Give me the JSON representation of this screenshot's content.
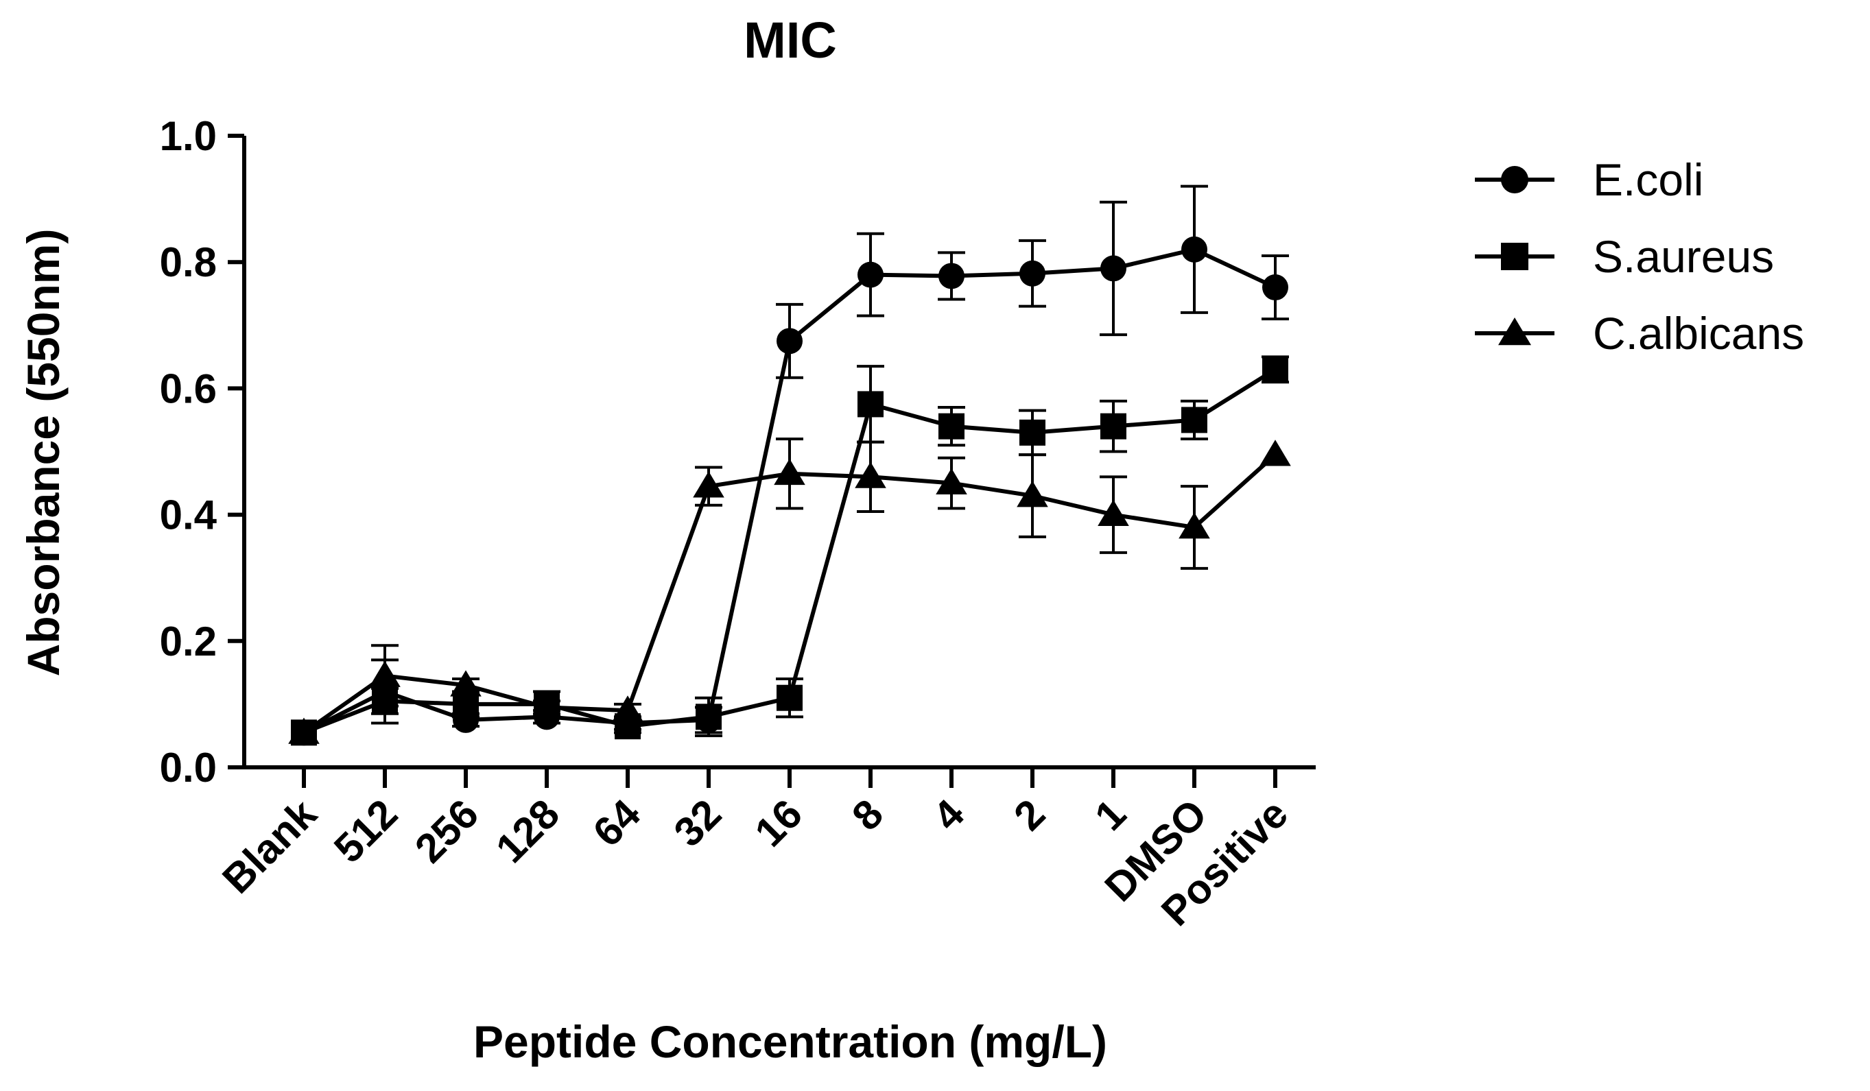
{
  "chart_data": {
    "type": "line",
    "title": "MIC",
    "xlabel": "Peptide Concentration (mg/L)",
    "ylabel": "Absorbance (550nm)",
    "ylim": [
      0.0,
      1.0
    ],
    "yticks": [
      0.0,
      0.2,
      0.4,
      0.6,
      0.8,
      1.0
    ],
    "ytick_labels": [
      "0.0",
      "0.2",
      "0.4",
      "0.6",
      "0.8",
      "1.0"
    ],
    "categories": [
      "Blank",
      "512",
      "256",
      "128",
      "64",
      "32",
      "16",
      "8",
      "4",
      "2",
      "1",
      "DMSO",
      "Positive"
    ],
    "legend_position": "right",
    "grid": false,
    "color": "#000000",
    "series": [
      {
        "name": "E.coli",
        "marker": "circle",
        "values": [
          0.055,
          0.12,
          0.075,
          0.08,
          0.07,
          0.075,
          0.675,
          0.78,
          0.778,
          0.782,
          0.79,
          0.82,
          0.76
        ],
        "errors": [
          0.0,
          0.05,
          0.01,
          0.01,
          0.01,
          0.02,
          0.058,
          0.065,
          0.037,
          0.052,
          0.105,
          0.1,
          0.05
        ]
      },
      {
        "name": "S.aureus",
        "marker": "square",
        "values": [
          0.055,
          0.105,
          0.1,
          0.1,
          0.065,
          0.08,
          0.11,
          0.575,
          0.54,
          0.53,
          0.54,
          0.55,
          0.63
        ],
        "errors": [
          0.0,
          0.02,
          0.02,
          0.02,
          0.01,
          0.03,
          0.03,
          0.06,
          0.03,
          0.035,
          0.04,
          0.03,
          0.02
        ]
      },
      {
        "name": "C.albicans",
        "marker": "triangle",
        "values": [
          0.055,
          0.145,
          0.13,
          0.095,
          0.09,
          0.445,
          0.465,
          0.46,
          0.45,
          0.43,
          0.4,
          0.38,
          0.495
        ],
        "errors": [
          0.0,
          0.048,
          0.01,
          0.01,
          0.01,
          0.03,
          0.055,
          0.055,
          0.04,
          0.065,
          0.06,
          0.065,
          0.0
        ]
      }
    ]
  }
}
